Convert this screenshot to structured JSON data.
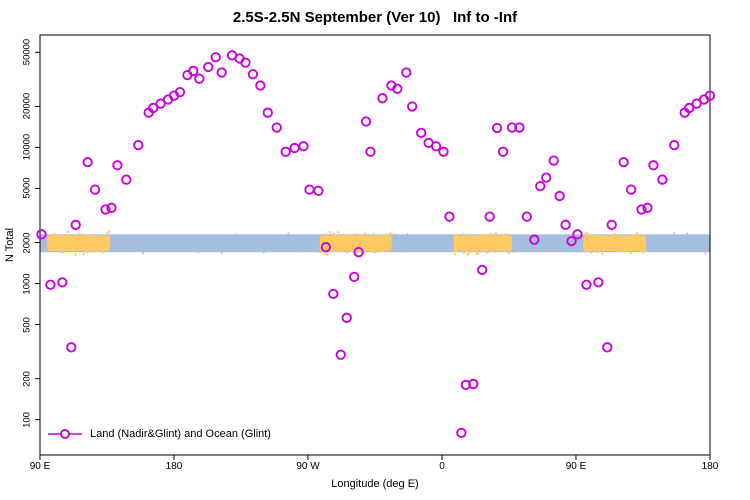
{
  "chart_data": {
    "type": "scatter",
    "title": "2.5S-2.5N September (Ver 10)   Inf to -Inf",
    "xlabel": "Longitude (deg E)",
    "ylabel": "N Total",
    "grid": false,
    "x_axis": {
      "min": 90,
      "max": 540,
      "ticks": [
        {
          "v": 90,
          "label": "90 E"
        },
        {
          "v": 180,
          "label": "180"
        },
        {
          "v": 270,
          "label": "90 W"
        },
        {
          "v": 360,
          "label": "0"
        },
        {
          "v": 450,
          "label": "90 E"
        },
        {
          "v": 540,
          "label": "180"
        }
      ]
    },
    "y_axis": {
      "scale": "log",
      "min": 55,
      "max": 67000,
      "ticks": [
        {
          "v": 100,
          "label": "100"
        },
        {
          "v": 200,
          "label": "200"
        },
        {
          "v": 500,
          "label": "500"
        },
        {
          "v": 1000,
          "label": "1000"
        },
        {
          "v": 2000,
          "label": "2000"
        },
        {
          "v": 5000,
          "label": "5000"
        },
        {
          "v": 10000,
          "label": "10000"
        },
        {
          "v": 20000,
          "label": "20000"
        },
        {
          "v": 50000,
          "label": "50000"
        }
      ]
    },
    "legend": {
      "label": "Land (Nadir&Glint) and Ocean (Glint)",
      "marker": "open-circle-on-line",
      "color": "#CC00DD"
    },
    "band": {
      "name": "ocean-band-around-2000",
      "color": "#A6BEDD",
      "x_from": 90,
      "x_to": 540,
      "y_from": 1700,
      "y_to": 2300
    },
    "patches": [
      {
        "name": "land-patch-indonesia",
        "color": "#FFC963",
        "x_from": 95,
        "x_to": 137
      },
      {
        "name": "land-patch-south-america",
        "color": "#FFC963",
        "x_from": 278,
        "x_to": 326
      },
      {
        "name": "land-patch-africa",
        "color": "#FFC963",
        "x_from": 368,
        "x_to": 407
      },
      {
        "name": "land-patch-indonesia-wrap",
        "color": "#FFC963",
        "x_from": 455,
        "x_to": 497
      }
    ],
    "series": [
      {
        "name": "Land (Nadir&Glint) and Ocean (Glint)",
        "marker": "open-circle",
        "color": "#CC00DD",
        "points": [
          [
            91,
            2300
          ],
          [
            97,
            980
          ],
          [
            105,
            1020
          ],
          [
            111,
            340
          ],
          [
            114,
            2700
          ],
          [
            122,
            7800
          ],
          [
            127,
            4900
          ],
          [
            134,
            3500
          ],
          [
            138,
            3600
          ],
          [
            142,
            7400
          ],
          [
            148,
            5800
          ],
          [
            156,
            10400
          ],
          [
            163,
            18000
          ],
          [
            166,
            19500
          ],
          [
            171,
            21000
          ],
          [
            176,
            22500
          ],
          [
            180,
            24000
          ],
          [
            184,
            25500
          ],
          [
            189,
            34000
          ],
          [
            193,
            36500
          ],
          [
            197,
            32000
          ],
          [
            203,
            39000
          ],
          [
            208,
            46000
          ],
          [
            212,
            35500
          ],
          [
            219,
            47500
          ],
          [
            224,
            45000
          ],
          [
            228,
            42000
          ],
          [
            233,
            34500
          ],
          [
            238,
            28500
          ],
          [
            243,
            18000
          ],
          [
            249,
            14000
          ],
          [
            255,
            9300
          ],
          [
            261,
            9900
          ],
          [
            267,
            10200
          ],
          [
            271,
            4900
          ],
          [
            277,
            4800
          ],
          [
            282,
            1850
          ],
          [
            287,
            840
          ],
          [
            292,
            300
          ],
          [
            296,
            560
          ],
          [
            301,
            1120
          ],
          [
            304,
            1700
          ],
          [
            309,
            15500
          ],
          [
            312,
            9300
          ],
          [
            320,
            23000
          ],
          [
            326,
            28500
          ],
          [
            330,
            27000
          ],
          [
            336,
            35500
          ],
          [
            340,
            20000
          ],
          [
            346,
            12800
          ],
          [
            351,
            10800
          ],
          [
            356,
            10200
          ],
          [
            361,
            9300
          ],
          [
            365,
            3100
          ],
          [
            373,
            80
          ],
          [
            376,
            180
          ],
          [
            381,
            183
          ],
          [
            387,
            1260
          ],
          [
            392,
            3100
          ],
          [
            397,
            13900
          ],
          [
            401,
            9300
          ],
          [
            407,
            14000
          ],
          [
            412,
            14000
          ],
          [
            417,
            3100
          ],
          [
            422,
            2100
          ],
          [
            426,
            5200
          ],
          [
            430,
            6000
          ],
          [
            435,
            8000
          ],
          [
            439,
            4400
          ],
          [
            443,
            2700
          ],
          [
            447,
            2050
          ],
          [
            451,
            2300
          ],
          [
            457,
            980
          ],
          [
            465,
            1020
          ],
          [
            471,
            340
          ],
          [
            474,
            2700
          ],
          [
            482,
            7800
          ],
          [
            487,
            4900
          ],
          [
            494,
            3500
          ],
          [
            498,
            3600
          ],
          [
            502,
            7400
          ],
          [
            508,
            5800
          ],
          [
            516,
            10400
          ],
          [
            523,
            18000
          ],
          [
            526,
            19500
          ],
          [
            531,
            21000
          ],
          [
            536,
            22500
          ],
          [
            540,
            24000
          ]
        ]
      }
    ]
  }
}
